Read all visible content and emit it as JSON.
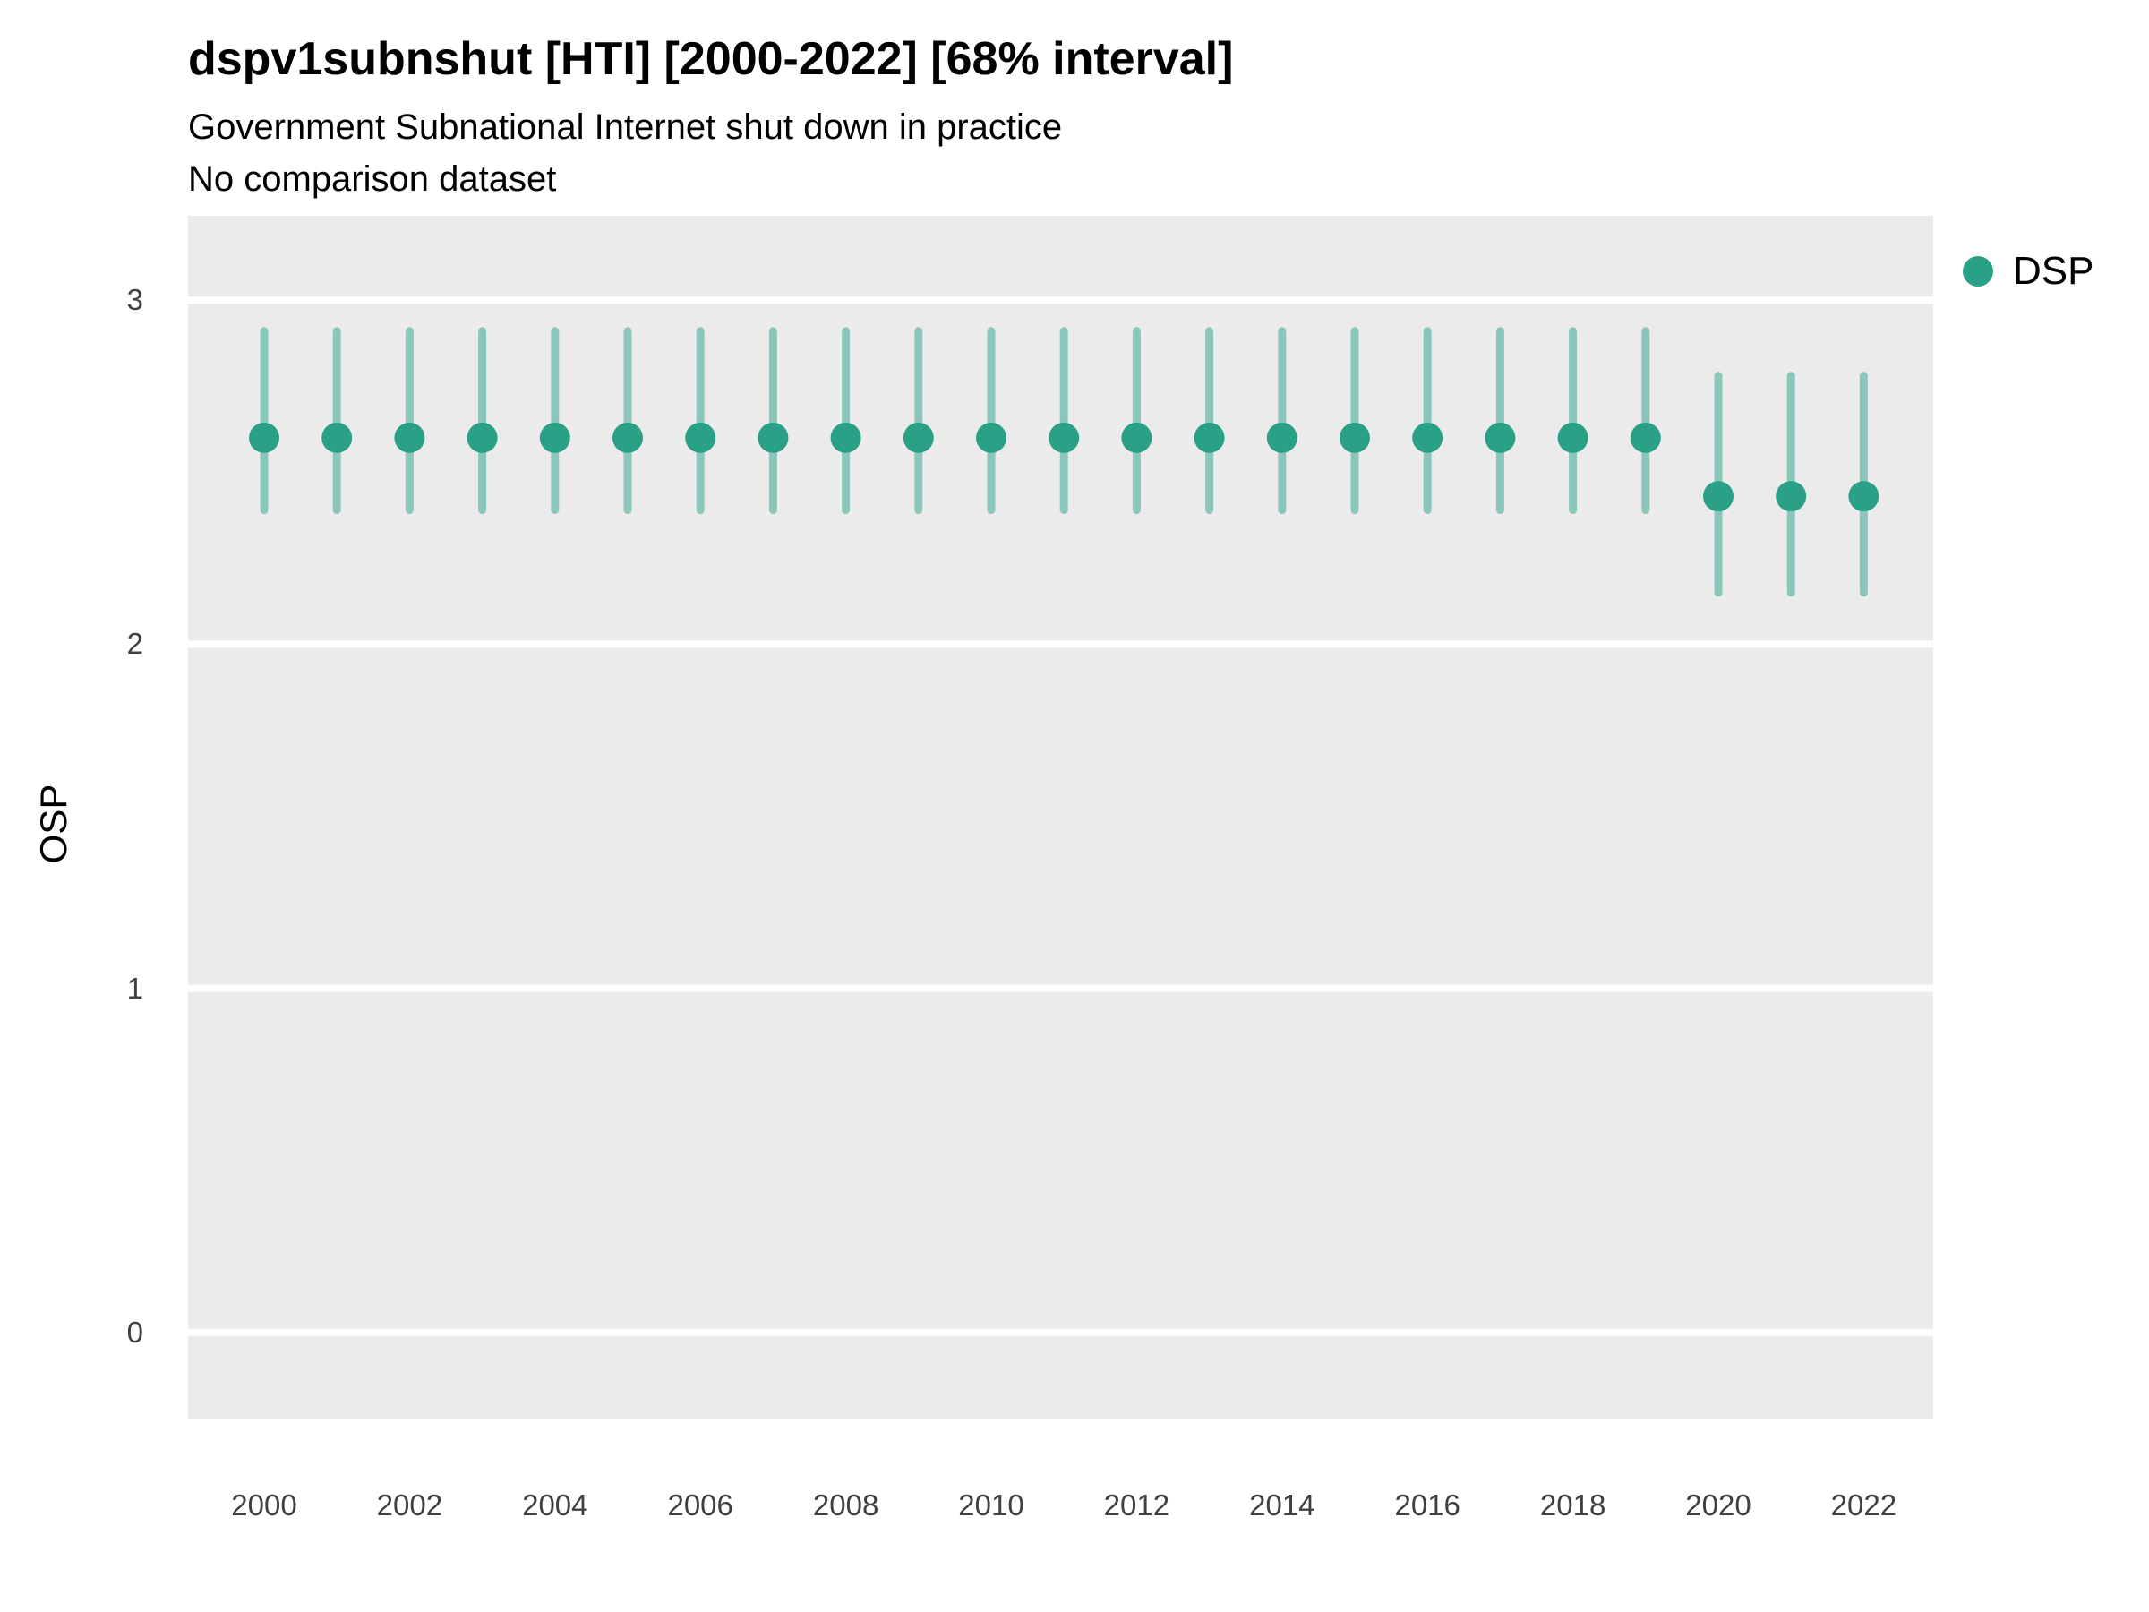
{
  "title": "dspv1subnshut [HTI] [2000-2022] [68% interval]",
  "subtitle": "Government Subnational Internet shut down in practice",
  "comparison_note": "No comparison dataset",
  "y_axis_label": "OSP",
  "legend": {
    "items": [
      {
        "label": "DSP",
        "color": "#2aa187"
      }
    ]
  },
  "colors": {
    "point": "#2aa187",
    "interval": "#2aa187",
    "interval_opacity": 0.5,
    "panel_bg": "#ebebeb",
    "grid": "#ffffff",
    "tick_text": "#404040",
    "text": "#000000"
  },
  "chart_data": {
    "type": "pointrange",
    "title": "dspv1subnshut [HTI] [2000-2022] [68% interval]",
    "subtitle": "Government Subnational Internet shut down in practice",
    "note": "No comparison dataset",
    "xlabel": "",
    "ylabel": "OSP",
    "interval": "68%",
    "legend_position": "right",
    "grid": "major-white-on-gray",
    "x": [
      2000,
      2001,
      2002,
      2003,
      2004,
      2005,
      2006,
      2007,
      2008,
      2009,
      2010,
      2011,
      2012,
      2013,
      2014,
      2015,
      2016,
      2017,
      2018,
      2019,
      2020,
      2021,
      2022
    ],
    "series": [
      {
        "name": "DSP",
        "values": [
          2.6,
          2.6,
          2.6,
          2.6,
          2.6,
          2.6,
          2.6,
          2.6,
          2.6,
          2.6,
          2.6,
          2.6,
          2.6,
          2.6,
          2.6,
          2.6,
          2.6,
          2.6,
          2.6,
          2.6,
          2.43,
          2.43,
          2.43
        ],
        "lower": [
          2.39,
          2.39,
          2.39,
          2.39,
          2.39,
          2.39,
          2.39,
          2.39,
          2.39,
          2.39,
          2.39,
          2.39,
          2.39,
          2.39,
          2.39,
          2.39,
          2.39,
          2.39,
          2.39,
          2.39,
          2.15,
          2.15,
          2.15
        ],
        "upper": [
          2.91,
          2.91,
          2.91,
          2.91,
          2.91,
          2.91,
          2.91,
          2.91,
          2.91,
          2.91,
          2.91,
          2.91,
          2.91,
          2.91,
          2.91,
          2.91,
          2.91,
          2.91,
          2.91,
          2.91,
          2.78,
          2.78,
          2.78
        ]
      }
    ],
    "ylim": [
      -0.25,
      3.245
    ],
    "y_ticks": [
      0,
      1,
      2,
      3
    ],
    "x_ticks": [
      2000,
      2002,
      2004,
      2006,
      2008,
      2010,
      2012,
      2014,
      2016,
      2018,
      2020,
      2022
    ]
  }
}
